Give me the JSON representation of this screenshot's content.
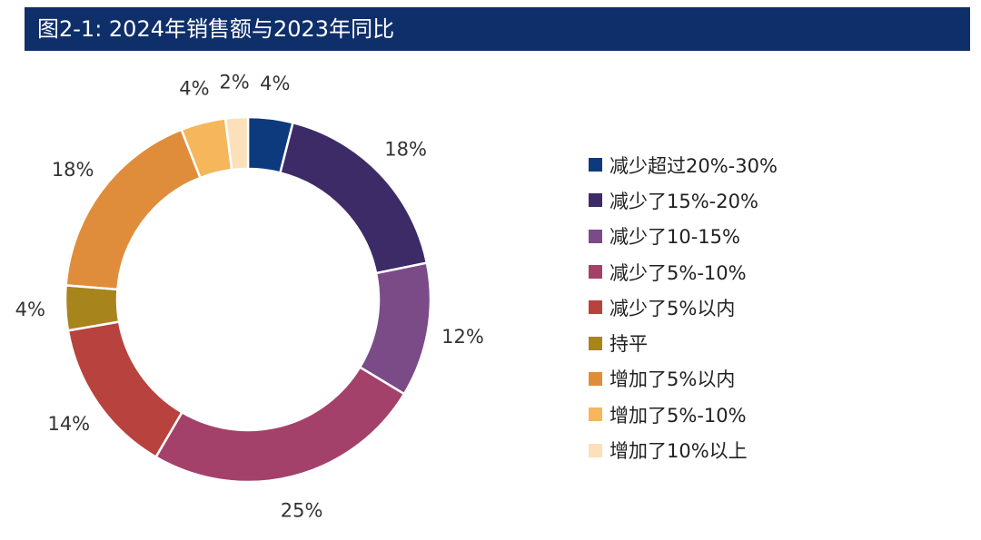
{
  "chart_data": {
    "type": "pie",
    "subtype": "donut",
    "title": "图2-1: 2024年销售额与2023年同比",
    "categories": [
      "减少超过20%-30%",
      "减少了15%-20%",
      "减少了10-15%",
      "减少了5%-10%",
      "减少了5%以内",
      "持平",
      "增加了5%以内",
      "增加了5%-10%",
      "增加了10%以上"
    ],
    "values": [
      4,
      18,
      12,
      25,
      14,
      4,
      18,
      4,
      2
    ],
    "labels": [
      "4%",
      "18%",
      "12%",
      "25%",
      "14%",
      "4%",
      "18%",
      "4%",
      "2%"
    ],
    "colors": [
      "#0c3a7c",
      "#3d2b67",
      "#7b4b88",
      "#a3416b",
      "#b8423d",
      "#a8841c",
      "#e08d3b",
      "#f5b65c",
      "#fbe0ba"
    ],
    "legend_position": "right"
  }
}
